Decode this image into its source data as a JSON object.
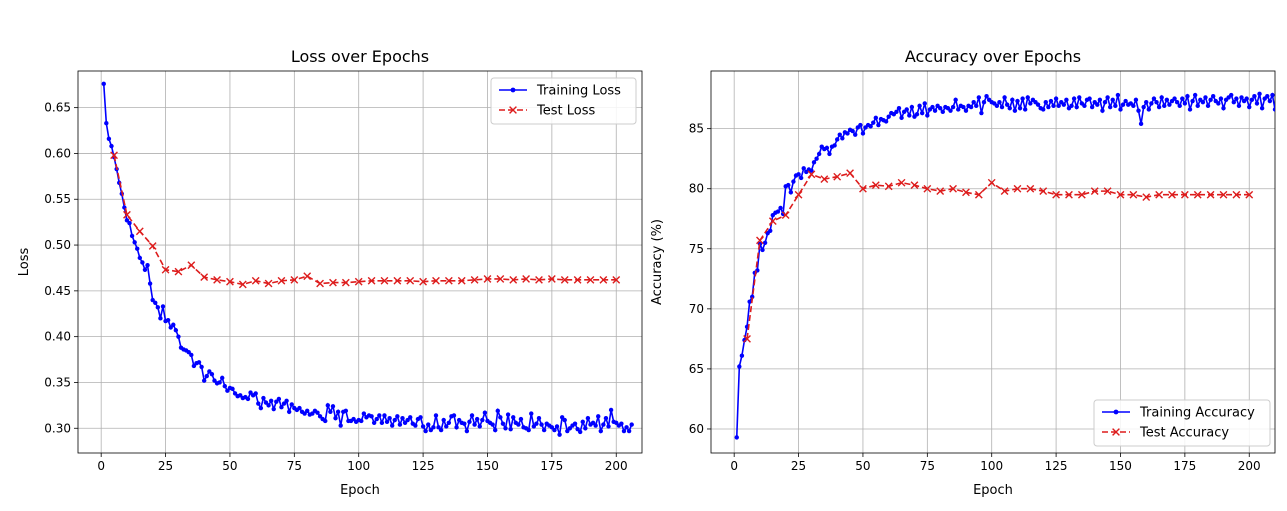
{
  "chart_data": [
    {
      "type": "line",
      "title": "Loss over Epochs",
      "xlabel": "Epoch",
      "ylabel": "Loss",
      "xlim": [
        -9,
        210
      ],
      "ylim": [
        0.273,
        0.69
      ],
      "xticks": [
        0,
        25,
        50,
        75,
        100,
        125,
        150,
        175,
        200
      ],
      "yticks": [
        0.3,
        0.35,
        0.4,
        0.45,
        0.5,
        0.55,
        0.6,
        0.65
      ],
      "ytick_labels": [
        "0.30",
        "0.35",
        "0.40",
        "0.45",
        "0.50",
        "0.55",
        "0.60",
        "0.65"
      ],
      "grid": true,
      "legend_position": "top-right",
      "series": [
        {
          "name": "Training Loss",
          "color": "#0000ff",
          "marker": "dot",
          "linestyle": "solid",
          "x_start": 1,
          "x_step": 1,
          "values": [
            0.676,
            0.633,
            0.616,
            0.608,
            0.596,
            0.583,
            0.568,
            0.556,
            0.541,
            0.527,
            0.524,
            0.51,
            0.503,
            0.496,
            0.486,
            0.481,
            0.473,
            0.478,
            0.458,
            0.44,
            0.437,
            0.432,
            0.42,
            0.433,
            0.417,
            0.418,
            0.41,
            0.413,
            0.407,
            0.4,
            0.388,
            0.386,
            0.385,
            0.383,
            0.38,
            0.368,
            0.371,
            0.372,
            0.367,
            0.352,
            0.357,
            0.362,
            0.359,
            0.352,
            0.349,
            0.35,
            0.355,
            0.346,
            0.341,
            0.344,
            0.343,
            0.338,
            0.335,
            0.336,
            0.333,
            0.334,
            0.332,
            0.339,
            0.336,
            0.338,
            0.327,
            0.322,
            0.333,
            0.328,
            0.325,
            0.33,
            0.321,
            0.329,
            0.332,
            0.323,
            0.327,
            0.33,
            0.318,
            0.326,
            0.322,
            0.32,
            0.322,
            0.318,
            0.316,
            0.319,
            0.315,
            0.316,
            0.319,
            0.317,
            0.313,
            0.31,
            0.308,
            0.325,
            0.318,
            0.324,
            0.311,
            0.318,
            0.303,
            0.318,
            0.319,
            0.308,
            0.308,
            0.31,
            0.307,
            0.309,
            0.308,
            0.316,
            0.312,
            0.314,
            0.313,
            0.306,
            0.31,
            0.314,
            0.306,
            0.314,
            0.307,
            0.311,
            0.303,
            0.309,
            0.313,
            0.304,
            0.311,
            0.306,
            0.309,
            0.312,
            0.305,
            0.303,
            0.31,
            0.312,
            0.302,
            0.297,
            0.304,
            0.298,
            0.301,
            0.314,
            0.301,
            0.298,
            0.309,
            0.302,
            0.306,
            0.313,
            0.314,
            0.301,
            0.309,
            0.306,
            0.305,
            0.297,
            0.307,
            0.314,
            0.304,
            0.31,
            0.302,
            0.309,
            0.317,
            0.308,
            0.306,
            0.304,
            0.298,
            0.319,
            0.312,
            0.305,
            0.3,
            0.315,
            0.299,
            0.312,
            0.306,
            0.304,
            0.31,
            0.301,
            0.3,
            0.298,
            0.316,
            0.302,
            0.305,
            0.311,
            0.304,
            0.298,
            0.305,
            0.303,
            0.301,
            0.298,
            0.302,
            0.293,
            0.312,
            0.309,
            0.297,
            0.3,
            0.303,
            0.305,
            0.299,
            0.296,
            0.307,
            0.3,
            0.311,
            0.304,
            0.306,
            0.303,
            0.313,
            0.297,
            0.304,
            0.311,
            0.302,
            0.32,
            0.307,
            0.306,
            0.303,
            0.305,
            0.297,
            0.301,
            0.297,
            0.304
          ]
        },
        {
          "name": "Test Loss",
          "color": "#dd1c1c",
          "marker": "x",
          "linestyle": "dashed",
          "x": [
            5,
            10,
            15,
            20,
            25,
            30,
            35,
            40,
            45,
            50,
            55,
            60,
            65,
            70,
            75,
            80,
            85,
            90,
            95,
            100,
            105,
            110,
            115,
            120,
            125,
            130,
            135,
            140,
            145,
            150,
            155,
            160,
            165,
            170,
            175,
            180,
            185,
            190,
            195,
            200
          ],
          "values": [
            0.598,
            0.533,
            0.515,
            0.499,
            0.473,
            0.471,
            0.478,
            0.465,
            0.462,
            0.46,
            0.457,
            0.461,
            0.458,
            0.461,
            0.462,
            0.466,
            0.458,
            0.459,
            0.459,
            0.46,
            0.461,
            0.461,
            0.461,
            0.461,
            0.46,
            0.461,
            0.461,
            0.461,
            0.462,
            0.463,
            0.463,
            0.462,
            0.463,
            0.462,
            0.463,
            0.462,
            0.462,
            0.462,
            0.462,
            0.462
          ]
        }
      ]
    },
    {
      "type": "line",
      "title": "Accuracy over Epochs",
      "xlabel": "Epoch",
      "ylabel": "Accuracy (%)",
      "xlim": [
        -9,
        210
      ],
      "ylim": [
        58,
        89.8
      ],
      "xticks": [
        0,
        25,
        50,
        75,
        100,
        125,
        150,
        175,
        200
      ],
      "yticks": [
        60,
        65,
        70,
        75,
        80,
        85
      ],
      "ytick_labels": [
        "60",
        "65",
        "70",
        "75",
        "80",
        "85"
      ],
      "grid": true,
      "legend_position": "bottom-right",
      "series": [
        {
          "name": "Training Accuracy",
          "color": "#0000ff",
          "marker": "dot",
          "linestyle": "solid",
          "x_start": 1,
          "x_step": 1,
          "values": [
            59.3,
            65.2,
            66.1,
            67.4,
            68.5,
            70.6,
            71.0,
            73.0,
            73.2,
            75.4,
            74.9,
            75.5,
            76.3,
            76.5,
            77.8,
            78.0,
            78.1,
            78.4,
            77.9,
            80.2,
            80.3,
            79.7,
            80.6,
            81.1,
            81.2,
            80.9,
            81.7,
            81.4,
            81.6,
            81.5,
            82.2,
            82.5,
            82.9,
            83.5,
            83.3,
            83.4,
            82.9,
            83.5,
            83.6,
            84.1,
            84.5,
            84.2,
            84.7,
            84.6,
            84.9,
            84.8,
            84.5,
            85.1,
            85.3,
            84.6,
            85.1,
            85.3,
            85.2,
            85.5,
            85.9,
            85.3,
            85.8,
            85.7,
            85.6,
            86.0,
            86.3,
            86.2,
            86.4,
            86.7,
            85.9,
            86.4,
            86.6,
            86.1,
            86.8,
            86.0,
            86.2,
            86.9,
            86.3,
            87.1,
            86.1,
            86.6,
            86.8,
            86.5,
            86.9,
            86.7,
            86.4,
            86.8,
            86.7,
            86.5,
            86.8,
            87.4,
            86.6,
            86.9,
            86.8,
            86.5,
            86.9,
            86.8,
            87.2,
            86.9,
            87.6,
            86.3,
            87.2,
            87.7,
            87.4,
            87.2,
            87.1,
            86.9,
            87.2,
            86.8,
            87.6,
            87.0,
            86.7,
            87.4,
            86.5,
            87.3,
            86.7,
            87.5,
            86.6,
            87.6,
            87.1,
            87.4,
            87.2,
            87.0,
            86.7,
            86.6,
            87.2,
            86.8,
            87.3,
            86.9,
            87.5,
            86.9,
            87.2,
            87.0,
            87.4,
            86.7,
            86.9,
            87.5,
            86.8,
            87.6,
            87.1,
            86.9,
            87.4,
            87.5,
            86.8,
            87.2,
            87.0,
            87.4,
            86.5,
            87.2,
            87.6,
            86.8,
            87.4,
            86.9,
            87.8,
            86.6,
            87.0,
            87.3,
            87.0,
            87.1,
            86.9,
            87.4,
            86.5,
            85.4,
            86.8,
            87.2,
            86.6,
            87.1,
            87.5,
            87.2,
            86.8,
            87.6,
            86.9,
            87.4,
            87.0,
            87.3,
            87.5,
            87.2,
            86.9,
            87.5,
            87.1,
            87.7,
            86.6,
            87.3,
            87.8,
            86.9,
            87.4,
            87.2,
            87.6,
            86.9,
            87.4,
            87.7,
            87.3,
            87.1,
            87.5,
            86.7,
            87.4,
            87.6,
            87.8,
            87.2,
            87.5,
            86.9,
            87.6,
            87.3,
            87.5,
            86.8,
            87.4,
            87.7,
            87.1,
            87.9,
            86.7,
            87.5,
            87.7,
            87.3,
            87.8,
            86.6
          ]
        },
        {
          "name": "Test Accuracy",
          "color": "#dd1c1c",
          "marker": "x",
          "linestyle": "dashed",
          "x": [
            5,
            10,
            15,
            20,
            25,
            30,
            35,
            40,
            45,
            50,
            55,
            60,
            65,
            70,
            75,
            80,
            85,
            90,
            95,
            100,
            105,
            110,
            115,
            120,
            125,
            130,
            135,
            140,
            145,
            150,
            155,
            160,
            165,
            170,
            175,
            180,
            185,
            190,
            195,
            200
          ],
          "values": [
            67.5,
            75.7,
            77.3,
            77.8,
            79.5,
            81.2,
            80.8,
            81.0,
            81.3,
            80.0,
            80.3,
            80.2,
            80.5,
            80.3,
            80.0,
            79.8,
            80.0,
            79.7,
            79.5,
            80.5,
            79.8,
            80.0,
            80.0,
            79.8,
            79.5,
            79.5,
            79.5,
            79.8,
            79.8,
            79.5,
            79.5,
            79.3,
            79.5,
            79.5,
            79.5,
            79.5,
            79.5,
            79.5,
            79.5,
            79.5
          ]
        }
      ]
    }
  ]
}
